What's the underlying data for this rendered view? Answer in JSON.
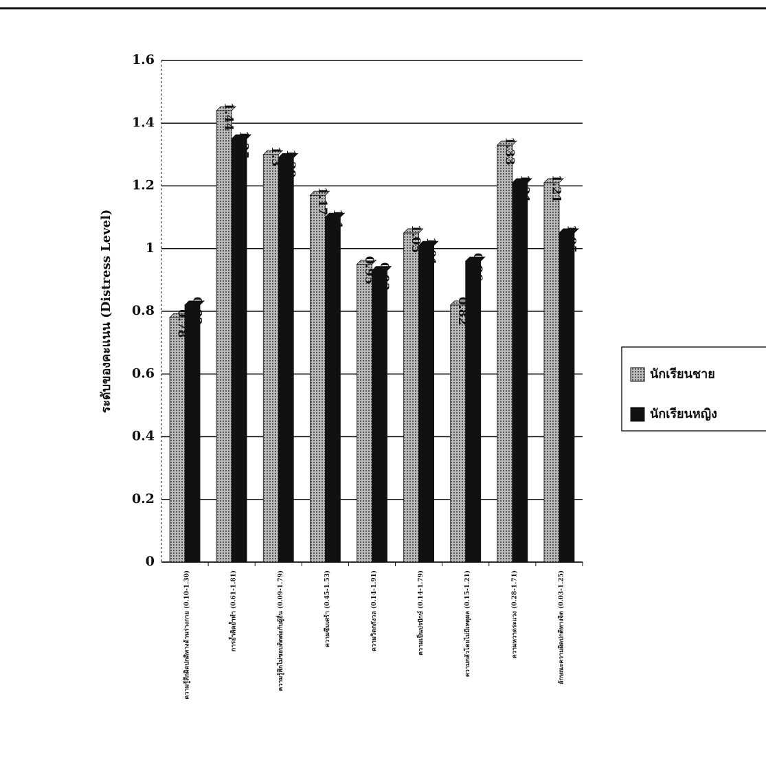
{
  "chart_data": {
    "type": "bar",
    "y_label": "ระดับของคะแนน (Distress Level)",
    "categories": [
      "ความรู้สึกผิดปกติทางด้านร่างกาย (0.10-1.30)",
      "การย้ำคิดย้ำทำ (0.61-1.81)",
      "ความรู้สึกไม่ชอบติดต่อกับผู้อื่น (0.09-1.79)",
      "ความซึมเศร้า (0.45-1.53)",
      "ความวิตกกังวล (0.14-1.91)",
      "ความเป็นปรปักษ์ (0.14-1.79)",
      "ความกลัวโดยไม่มีเหตุผล (0.15-1.21)",
      "ความหวาดระแวง (0.28-1.71)",
      "ลักษณะความผิดปกติทางจิต (0.03-1.25)"
    ],
    "series": [
      {
        "name": "นักเรียนชาย",
        "color": "#999999",
        "values": [
          0.78,
          1.44,
          1.3,
          1.17,
          0.95,
          1.05,
          0.82,
          1.33,
          1.21
        ]
      },
      {
        "name": "นักเรียนหญิง",
        "color": "#111111",
        "values": [
          0.82,
          1.35,
          1.29,
          1.1,
          0.93,
          1.01,
          0.96,
          1.21,
          1.05
        ]
      }
    ],
    "ylim": [
      0,
      1.6
    ],
    "yticks": [
      0,
      0.2,
      0.4,
      0.6,
      0.8,
      1,
      1.2,
      1.4,
      1.6
    ],
    "grid": true,
    "legend": "right"
  }
}
